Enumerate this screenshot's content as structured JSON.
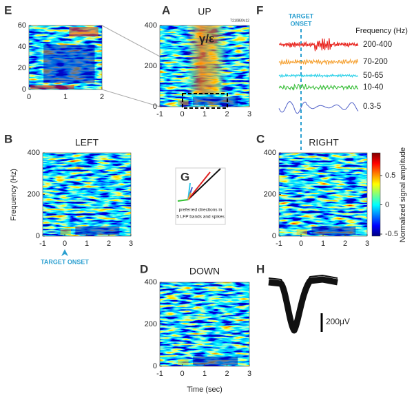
{
  "E": {
    "label": "E",
    "yticks": [
      0,
      20,
      40,
      60
    ],
    "xticks": [
      0,
      1,
      2
    ]
  },
  "A": {
    "label": "A",
    "title": "UP",
    "annotation": "γ/ε",
    "file_id": "T210830c12",
    "yticks": [
      0,
      200,
      400
    ],
    "xticks": [
      -1,
      0,
      1,
      2,
      3
    ]
  },
  "B": {
    "label": "B",
    "title": "LEFT",
    "y_label": "Frequency (Hz)",
    "yticks": [
      0,
      200,
      400
    ],
    "xticks": [
      -1,
      0,
      1,
      2,
      3
    ],
    "marker": "TARGET ONSET"
  },
  "C": {
    "label": "C",
    "title": "RIGHT",
    "yticks": [
      0,
      200,
      400
    ],
    "xticks": [
      -1,
      0,
      1,
      2,
      3
    ],
    "colorbar": {
      "label": "Normalized signal amplitude",
      "ticks": [
        0.5,
        0,
        -0.5
      ]
    }
  },
  "D": {
    "label": "D",
    "title": "DOWN",
    "yticks": [
      0,
      200,
      400
    ],
    "xticks": [
      -1,
      0,
      1,
      2,
      3
    ],
    "x_label": "Time (sec)"
  },
  "F": {
    "label": "F",
    "marker": [
      "TARGET",
      "ONSET"
    ],
    "legend_title": "Frequency (Hz)",
    "bands": [
      "200-400",
      "70-200",
      "50-65",
      "10-40",
      "0.3-5"
    ]
  },
  "G": {
    "label": "G",
    "caption": [
      "preferred directions in",
      "5 LFP bands and spikes"
    ]
  },
  "H": {
    "label": "H",
    "scale": "200μV"
  }
}
